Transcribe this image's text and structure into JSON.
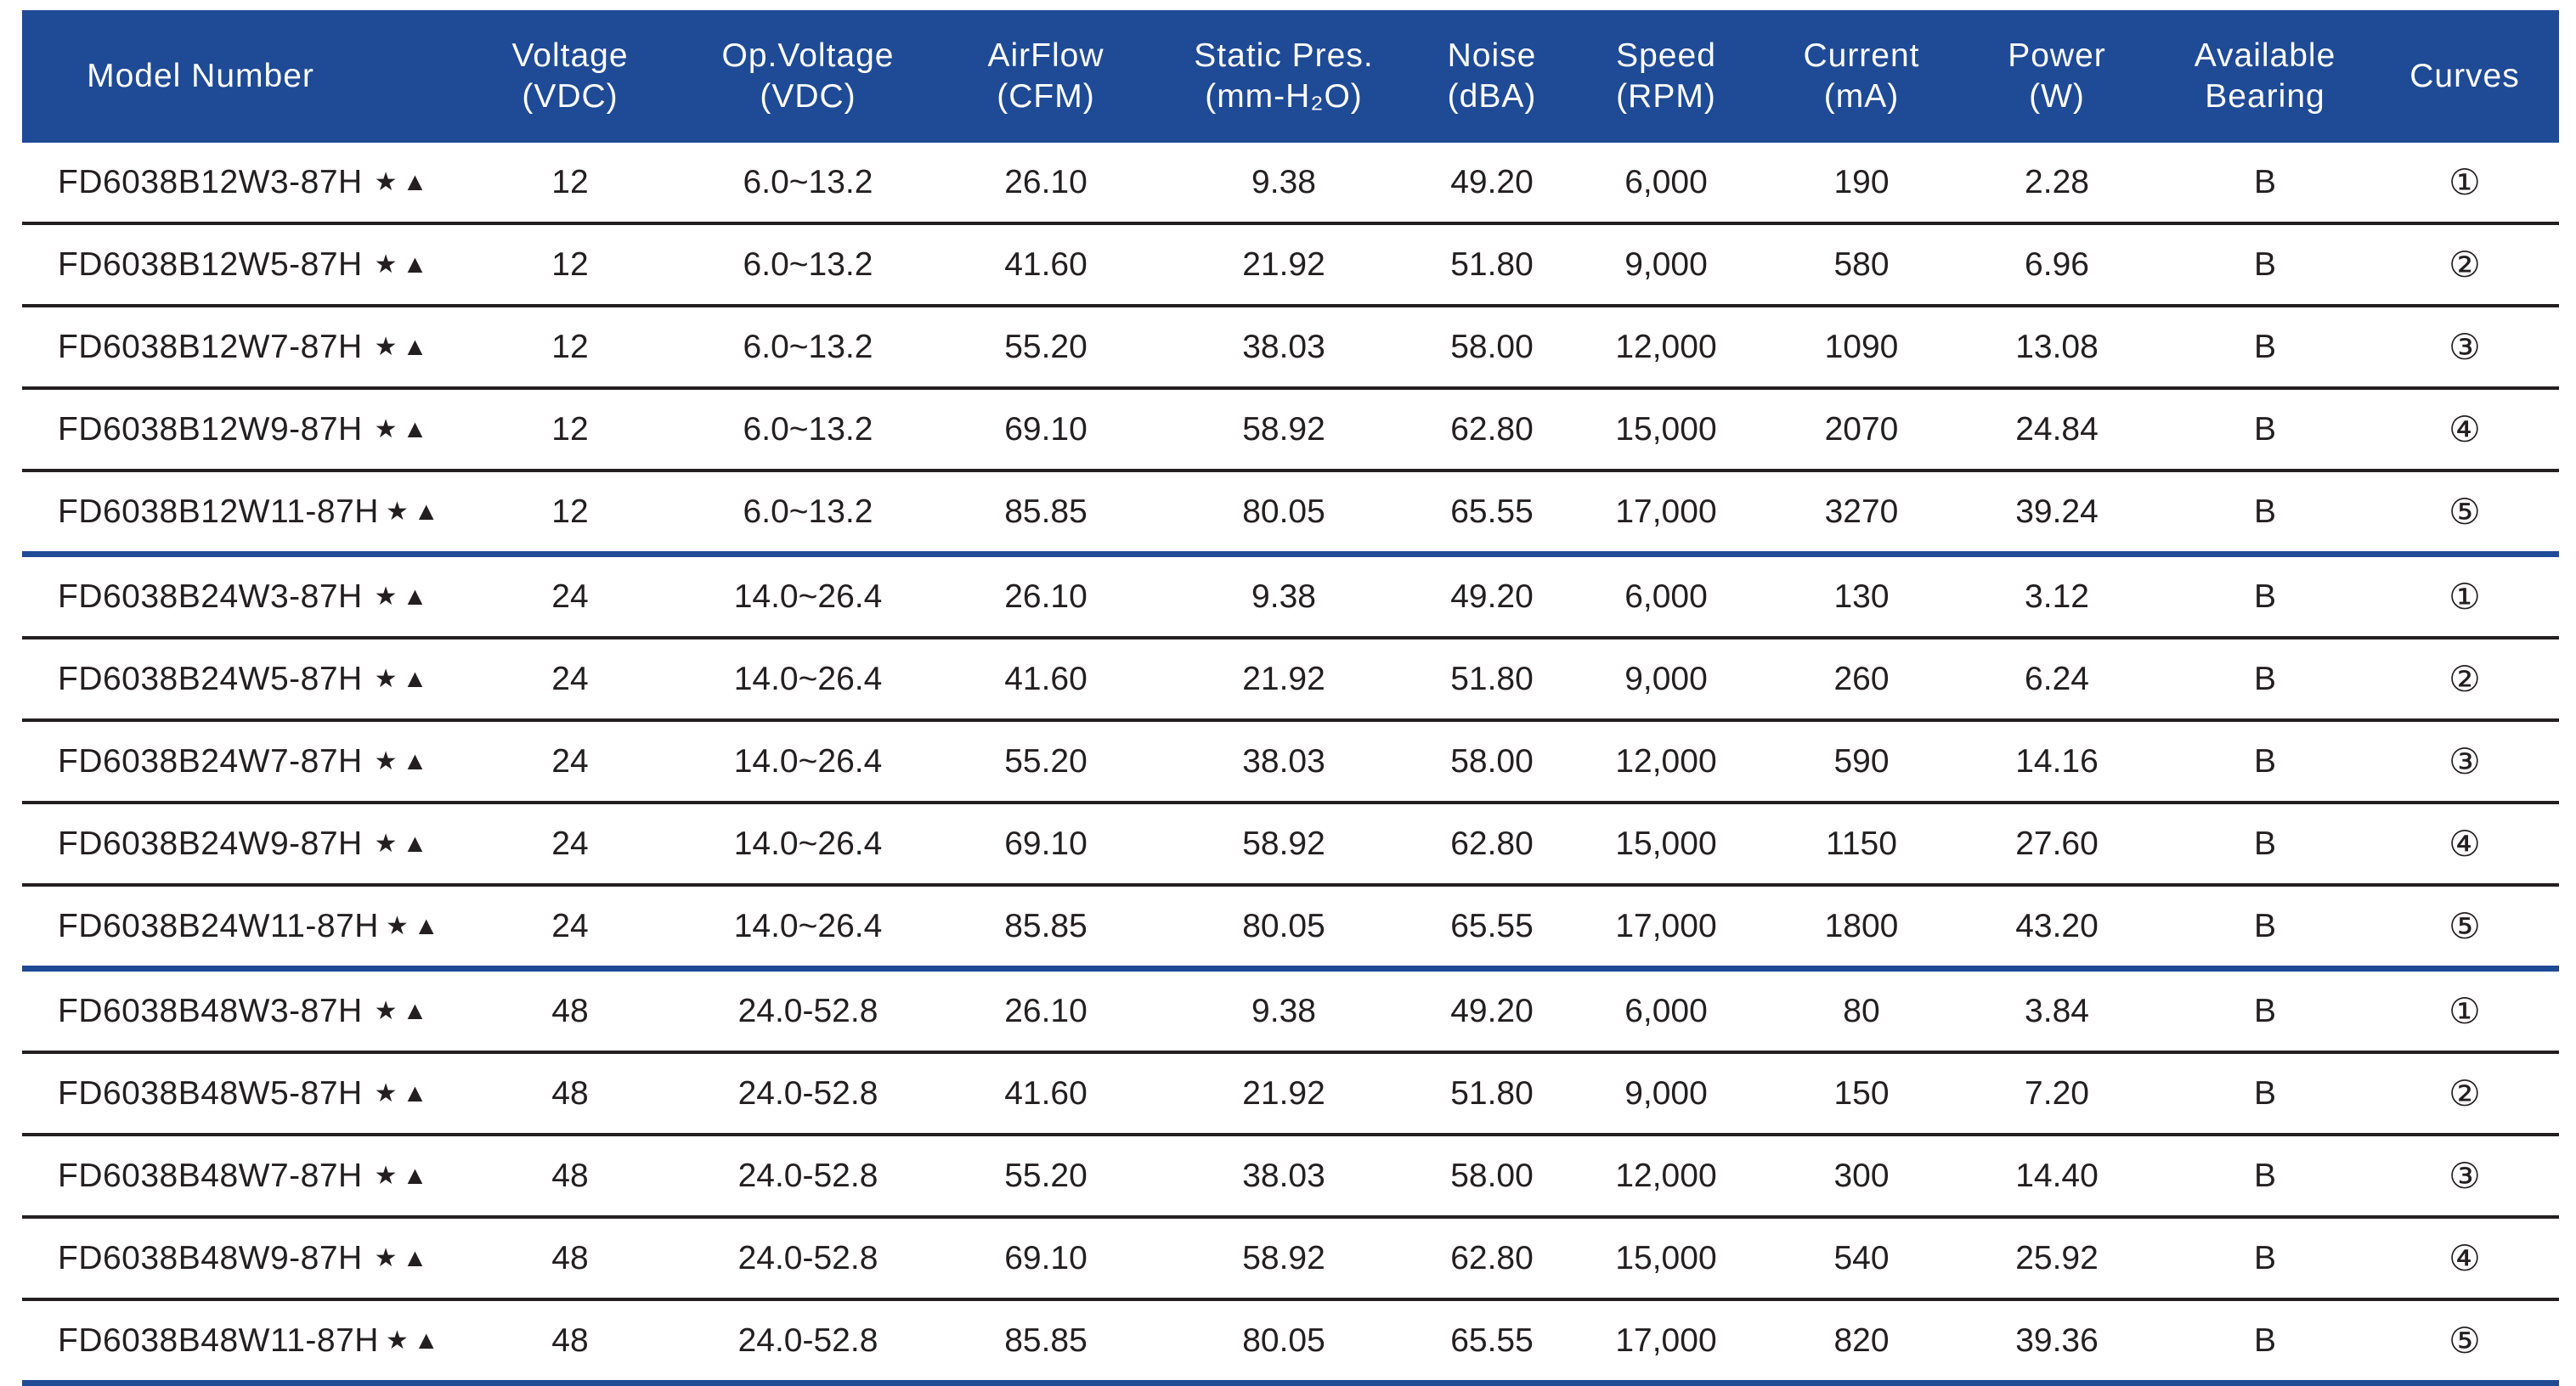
{
  "headers": [
    {
      "line1": "Model Number",
      "line2": ""
    },
    {
      "line1": "Voltage",
      "line2": "(VDC)"
    },
    {
      "line1": "Op.Voltage",
      "line2": "(VDC)"
    },
    {
      "line1": "AirFlow",
      "line2": "(CFM)"
    },
    {
      "line1": "Static Pres.",
      "line2": "(mm-H₂O)"
    },
    {
      "line1": "Noise",
      "line2": "(dBA)"
    },
    {
      "line1": "Speed",
      "line2": "(RPM)"
    },
    {
      "line1": "Current",
      "line2": "(mA)"
    },
    {
      "line1": "Power",
      "line2": "(W)"
    },
    {
      "line1": "Available",
      "line2": "Bearing"
    },
    {
      "line1": "Curves",
      "line2": ""
    }
  ],
  "marks": "★▲",
  "colors": {
    "header_bg": "#1f4a95",
    "group_divider": "#1f4a95",
    "row_divider": "#231f20"
  },
  "rows": [
    {
      "model": "FD6038B12W3-87H",
      "voltage": "12",
      "op_voltage": "6.0~13.2",
      "airflow": "26.10",
      "static_pres": "9.38",
      "noise": "49.20",
      "speed": "6,000",
      "current": "190",
      "power": "2.28",
      "bearing": "B",
      "curve": "①"
    },
    {
      "model": "FD6038B12W5-87H",
      "voltage": "12",
      "op_voltage": "6.0~13.2",
      "airflow": "41.60",
      "static_pres": "21.92",
      "noise": "51.80",
      "speed": "9,000",
      "current": "580",
      "power": "6.96",
      "bearing": "B",
      "curve": "②"
    },
    {
      "model": "FD6038B12W7-87H",
      "voltage": "12",
      "op_voltage": "6.0~13.2",
      "airflow": "55.20",
      "static_pres": "38.03",
      "noise": "58.00",
      "speed": "12,000",
      "current": "1090",
      "power": "13.08",
      "bearing": "B",
      "curve": "③"
    },
    {
      "model": "FD6038B12W9-87H",
      "voltage": "12",
      "op_voltage": "6.0~13.2",
      "airflow": "69.10",
      "static_pres": "58.92",
      "noise": "62.80",
      "speed": "15,000",
      "current": "2070",
      "power": "24.84",
      "bearing": "B",
      "curve": "④"
    },
    {
      "model": "FD6038B12W11-87H",
      "voltage": "12",
      "op_voltage": "6.0~13.2",
      "airflow": "85.85",
      "static_pres": "80.05",
      "noise": "65.55",
      "speed": "17,000",
      "current": "3270",
      "power": "39.24",
      "bearing": "B",
      "curve": "⑤"
    },
    {
      "model": "FD6038B24W3-87H",
      "voltage": "24",
      "op_voltage": "14.0~26.4",
      "airflow": "26.10",
      "static_pres": "9.38",
      "noise": "49.20",
      "speed": "6,000",
      "current": "130",
      "power": "3.12",
      "bearing": "B",
      "curve": "①"
    },
    {
      "model": "FD6038B24W5-87H",
      "voltage": "24",
      "op_voltage": "14.0~26.4",
      "airflow": "41.60",
      "static_pres": "21.92",
      "noise": "51.80",
      "speed": "9,000",
      "current": "260",
      "power": "6.24",
      "bearing": "B",
      "curve": "②"
    },
    {
      "model": "FD6038B24W7-87H",
      "voltage": "24",
      "op_voltage": "14.0~26.4",
      "airflow": "55.20",
      "static_pres": "38.03",
      "noise": "58.00",
      "speed": "12,000",
      "current": "590",
      "power": "14.16",
      "bearing": "B",
      "curve": "③"
    },
    {
      "model": "FD6038B24W9-87H",
      "voltage": "24",
      "op_voltage": "14.0~26.4",
      "airflow": "69.10",
      "static_pres": "58.92",
      "noise": "62.80",
      "speed": "15,000",
      "current": "1150",
      "power": "27.60",
      "bearing": "B",
      "curve": "④"
    },
    {
      "model": "FD6038B24W11-87H",
      "voltage": "24",
      "op_voltage": "14.0~26.4",
      "airflow": "85.85",
      "static_pres": "80.05",
      "noise": "65.55",
      "speed": "17,000",
      "current": "1800",
      "power": "43.20",
      "bearing": "B",
      "curve": "⑤"
    },
    {
      "model": "FD6038B48W3-87H",
      "voltage": "48",
      "op_voltage": "24.0-52.8",
      "airflow": "26.10",
      "static_pres": "9.38",
      "noise": "49.20",
      "speed": "6,000",
      "current": "80",
      "power": "3.84",
      "bearing": "B",
      "curve": "①"
    },
    {
      "model": "FD6038B48W5-87H",
      "voltage": "48",
      "op_voltage": "24.0-52.8",
      "airflow": "41.60",
      "static_pres": "21.92",
      "noise": "51.80",
      "speed": "9,000",
      "current": "150",
      "power": "7.20",
      "bearing": "B",
      "curve": "②"
    },
    {
      "model": "FD6038B48W7-87H",
      "voltage": "48",
      "op_voltage": "24.0-52.8",
      "airflow": "55.20",
      "static_pres": "38.03",
      "noise": "58.00",
      "speed": "12,000",
      "current": "300",
      "power": "14.40",
      "bearing": "B",
      "curve": "③"
    },
    {
      "model": "FD6038B48W9-87H",
      "voltage": "48",
      "op_voltage": "24.0-52.8",
      "airflow": "69.10",
      "static_pres": "58.92",
      "noise": "62.80",
      "speed": "15,000",
      "current": "540",
      "power": "25.92",
      "bearing": "B",
      "curve": "④"
    },
    {
      "model": "FD6038B48W11-87H",
      "voltage": "48",
      "op_voltage": "24.0-52.8",
      "airflow": "85.85",
      "static_pres": "80.05",
      "noise": "65.55",
      "speed": "17,000",
      "current": "820",
      "power": "39.36",
      "bearing": "B",
      "curve": "⑤"
    }
  ]
}
